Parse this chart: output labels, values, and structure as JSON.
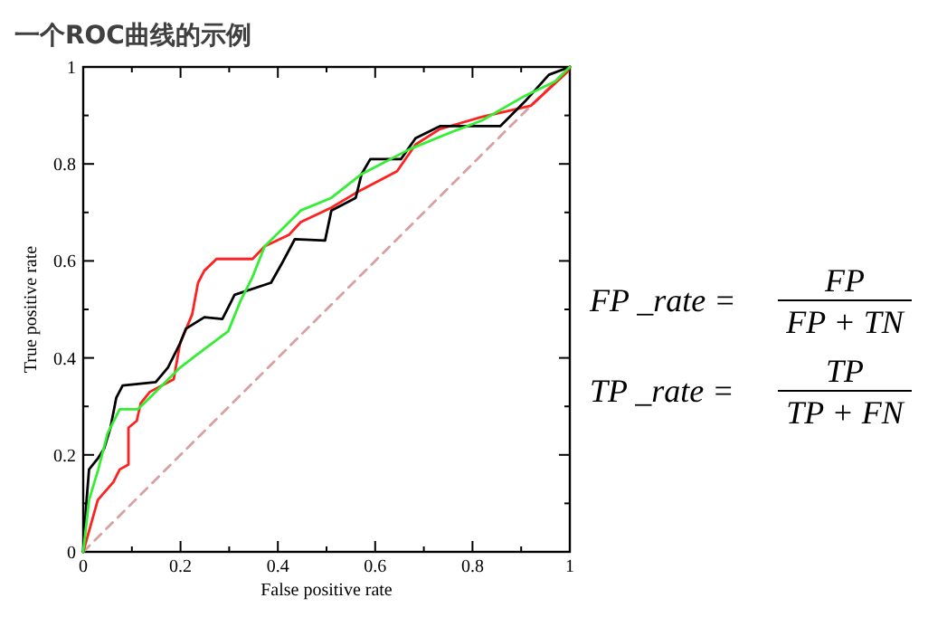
{
  "chart_data": {
    "type": "line",
    "title": "一个ROC曲线的示例",
    "xlabel": "False positive rate",
    "ylabel": "True positive rate",
    "xlim": [
      0,
      1
    ],
    "ylim": [
      0,
      1
    ],
    "xticks": [
      0,
      {
        "value": 0.1,
        "label": null
      },
      0.2,
      {
        "value": 0.3,
        "label": null
      },
      0.4,
      {
        "value": 0.5,
        "label": null
      },
      0.6,
      {
        "value": 0.7,
        "label": null
      },
      0.8,
      {
        "value": 0.9,
        "label": null
      },
      1
    ],
    "yticks": [
      0,
      {
        "value": 0.1,
        "label": null
      },
      0.2,
      {
        "value": 0.3,
        "label": null
      },
      0.4,
      {
        "value": 0.5,
        "label": null
      },
      0.6,
      {
        "value": 0.7,
        "label": null
      },
      0.8,
      {
        "value": 0.9,
        "label": null
      },
      1
    ],
    "grid": false,
    "marker": "none",
    "annotations": [
      "FP _rate =",
      "FP",
      "FP + TN",
      "TP _rate =",
      "TP",
      "TP + FN"
    ],
    "series": [
      {
        "color": "#d8a0a0",
        "line_style": "dashed",
        "x": [
          0,
          1
        ],
        "values": [
          0,
          1
        ]
      },
      {
        "color": "#ff2020",
        "x": [
          0,
          0.03,
          0.062,
          0.075,
          0.093,
          0.093,
          0.11,
          0.118,
          0.137,
          0.186,
          0.199,
          0.224,
          0.236,
          0.249,
          0.274,
          0.348,
          0.373,
          0.423,
          0.447,
          0.51,
          0.56,
          0.645,
          0.683,
          0.733,
          0.82,
          0.92,
          0.995,
          1
        ],
        "values": [
          0,
          0.107,
          0.144,
          0.17,
          0.18,
          0.256,
          0.27,
          0.306,
          0.33,
          0.356,
          0.43,
          0.49,
          0.555,
          0.58,
          0.604,
          0.604,
          0.63,
          0.654,
          0.68,
          0.71,
          0.74,
          0.785,
          0.84,
          0.872,
          0.897,
          0.92,
          0.99,
          1
        ]
      },
      {
        "color": "#000000",
        "x": [
          0,
          0.006,
          0.012,
          0.031,
          0.043,
          0.056,
          0.068,
          0.081,
          0.149,
          0.174,
          0.199,
          0.211,
          0.249,
          0.286,
          0.311,
          0.386,
          0.41,
          0.435,
          0.497,
          0.51,
          0.56,
          0.572,
          0.59,
          0.653,
          0.683,
          0.733,
          0.857,
          0.907,
          0.957,
          1
        ],
        "values": [
          0,
          0.095,
          0.17,
          0.194,
          0.213,
          0.256,
          0.318,
          0.343,
          0.35,
          0.38,
          0.43,
          0.46,
          0.484,
          0.48,
          0.53,
          0.555,
          0.598,
          0.645,
          0.642,
          0.704,
          0.73,
          0.779,
          0.81,
          0.81,
          0.853,
          0.878,
          0.878,
          0.928,
          0.984,
          1
        ]
      },
      {
        "color": "#33ee33",
        "x": [
          0,
          0.012,
          0.031,
          0.05,
          0.075,
          0.112,
          0.137,
          0.199,
          0.249,
          0.298,
          0.323,
          0.348,
          0.373,
          0.41,
          0.447,
          0.51,
          0.572,
          0.67,
          0.758,
          0.82,
          0.907,
          0.97,
          1
        ],
        "values": [
          0,
          0.107,
          0.17,
          0.244,
          0.294,
          0.294,
          0.318,
          0.38,
          0.418,
          0.455,
          0.517,
          0.567,
          0.63,
          0.667,
          0.704,
          0.73,
          0.779,
          0.83,
          0.866,
          0.89,
          0.94,
          0.97,
          1
        ]
      }
    ]
  }
}
